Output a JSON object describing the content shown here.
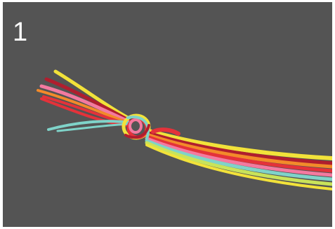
{
  "step": {
    "number": "1"
  },
  "colors": {
    "background": "#545454",
    "frame": "#ffffff",
    "threads": [
      "#f2e23a",
      "#f38a2a",
      "#e4323a",
      "#f47aa0",
      "#b01e2e",
      "#7fd3c9",
      "#c9e35a"
    ]
  }
}
